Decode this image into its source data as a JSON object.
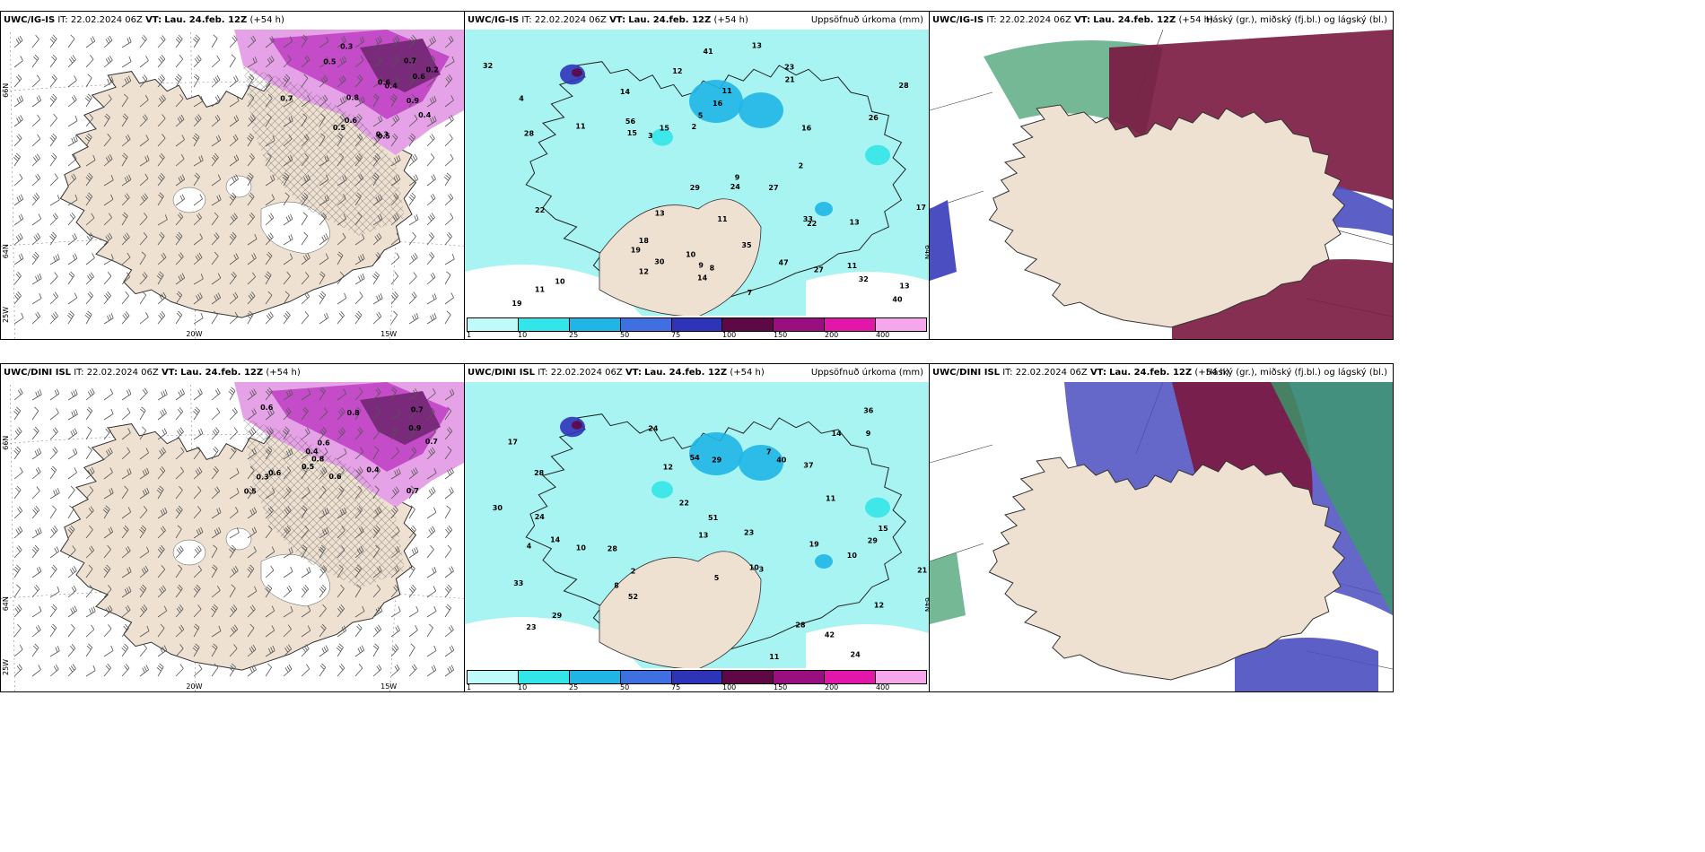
{
  "panels": [
    {
      "id": "p1",
      "model": "UWC/IG-IS",
      "it": "IT: 22.02.2024 06Z",
      "vt_label": "VT:",
      "vt": "Lau. 24.feb. 12Z",
      "lead": "(+54 h)",
      "right_title": "",
      "type": "precip-wind",
      "coords": [
        "66N",
        "64N",
        "25W",
        "20W",
        "15W"
      ],
      "values": [
        "0.4",
        "0.9",
        "0.7",
        "0.6",
        "0.5",
        "0.3",
        "0.2",
        "0.7",
        "0.8",
        "0.5",
        "0.3",
        "0.6",
        "0.4",
        "0.5",
        "0.6"
      ]
    },
    {
      "id": "p2",
      "model": "UWC/IG-IS",
      "it": "IT: 22.02.2024 06Z",
      "vt_label": "VT:",
      "vt": "Lau. 24.feb. 12Z",
      "lead": "(+54 h)",
      "right_title": "Uppsöfnuð úrkoma (mm)",
      "type": "accum",
      "coords": [
        "64N"
      ],
      "values": [
        "11",
        "13",
        "9",
        "11",
        "12",
        "13",
        "11",
        "23",
        "27",
        "19",
        "40",
        "15",
        "30",
        "41",
        "47",
        "56",
        "33",
        "22",
        "29",
        "28",
        "32",
        "10",
        "14",
        "27",
        "22",
        "21",
        "15",
        "16",
        "26",
        "35",
        "32",
        "13",
        "11",
        "19",
        "24",
        "7",
        "9",
        "16",
        "28",
        "10",
        "11",
        "18",
        "14",
        "12",
        "2",
        "3",
        "5",
        "8",
        "17",
        "13",
        "4",
        "2"
      ],
      "legend_ticks": [
        "1",
        "10",
        "25",
        "50",
        "75",
        "100",
        "150",
        "200",
        "400",
        ""
      ]
    },
    {
      "id": "p3",
      "model": "UWC/IG-IS",
      "it": "IT: 22.02.2024 06Z",
      "vt_label": "VT:",
      "vt": "Lau. 24.feb. 12Z",
      "lead": "(+54 h)",
      "right_title": "Háský (gr.), miðský (fj.bl.) og lágský (bl.)",
      "type": "cloud"
    },
    {
      "id": "p4",
      "model": "UWC/DINI ISL",
      "it": "IT: 22.02.2024 06Z",
      "vt_label": "VT:",
      "vt": "Lau. 24.feb. 12Z",
      "lead": "(+54 h)",
      "right_title": "",
      "type": "precip-wind",
      "coords": [
        "66N",
        "64N",
        "25W",
        "20W",
        "15W"
      ],
      "values": [
        "0.7",
        "0.8",
        "0.6",
        "0.4",
        "0.5",
        "0.9",
        "0.7",
        "0.6",
        "0.3",
        "0.5",
        "0.6",
        "0.8",
        "0.4",
        "0.7",
        "0.6"
      ]
    },
    {
      "id": "p5",
      "model": "UWC/DINI ISL",
      "it": "IT: 22.02.2024 06Z",
      "vt_label": "VT:",
      "vt": "Lau. 24.feb. 12Z",
      "lead": "(+54 h)",
      "right_title": "Uppsöfnuð úrkoma (mm)",
      "type": "accum",
      "coords": [
        "64N"
      ],
      "values": [
        "24",
        "14",
        "10",
        "17",
        "12",
        "28",
        "29",
        "28",
        "37",
        "54",
        "40",
        "42",
        "52",
        "24",
        "23",
        "33",
        "19",
        "51",
        "30",
        "23",
        "36",
        "29",
        "11",
        "21",
        "15",
        "24",
        "10",
        "13",
        "22",
        "9",
        "3",
        "4",
        "8",
        "7",
        "12",
        "10",
        "29",
        "28",
        "14",
        "11",
        "2",
        "5"
      ],
      "legend_ticks": [
        "1",
        "10",
        "25",
        "50",
        "75",
        "100",
        "150",
        "200",
        "400",
        ""
      ]
    },
    {
      "id": "p6",
      "model": "UWC/DINI ISL",
      "it": "IT: 22.02.2024 06Z",
      "vt_label": "VT:",
      "vt": "Lau. 24.feb. 12Z",
      "lead": "(+54 h)",
      "right_title": "Háský (gr.), miðský (fj.bl.) og lágský (bl.)",
      "type": "cloud"
    }
  ],
  "colors": {
    "land": "#eee1d2",
    "sea_accum": "#a8f4f2",
    "precip_light": "#e6a2e6",
    "precip_mid": "#c44cc8",
    "precip_dark": "#7a2a7a",
    "cloud_high": "#3a9a6a",
    "cloud_mid": "#7a1740",
    "cloud_low": "#4a4ec0"
  },
  "legend_colors": [
    "#bffbfb",
    "#33e5e8",
    "#1fb6e6",
    "#3f6fe0",
    "#2d34b8",
    "#5e0845",
    "#9a0f7f",
    "#e216a8",
    "#f6a6ea"
  ]
}
